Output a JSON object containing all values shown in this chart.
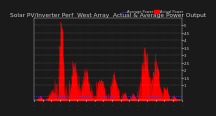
{
  "title": "Solar PV/Inverter Perf  West Array  Actual & Average Power Output",
  "bg_color": "#1a1a1a",
  "plot_bg": "#1a1a1a",
  "grid_color": "#ffffff",
  "bar_color": "#ff0000",
  "avg_color": "#4444ff",
  "avg_color2": "#ff8800",
  "text_color": "#cccccc",
  "title_color": "#cccccc",
  "ylim": [
    0,
    5.5
  ],
  "ytick_vals": [
    1.0,
    1.5,
    2.0,
    2.5,
    3.0,
    3.5,
    4.0,
    4.5,
    5.0
  ],
  "avg_line": 0.32,
  "n_points": 500,
  "title_fontsize": 4.2,
  "tick_fontsize": 2.8,
  "legend_fontsize": 2.5
}
